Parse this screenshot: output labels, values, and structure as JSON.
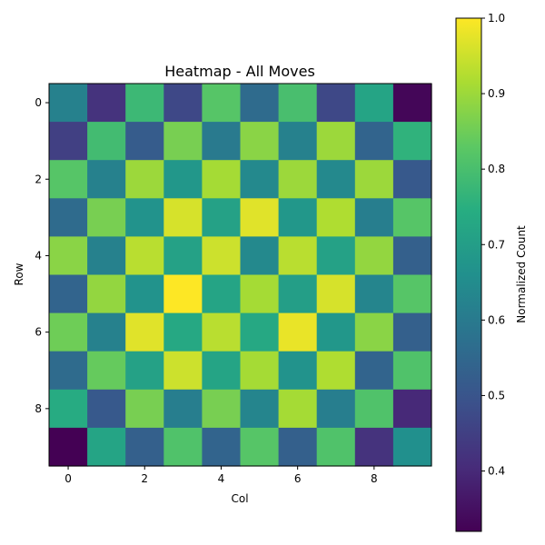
{
  "chart_data": {
    "type": "heatmap",
    "title": "Heatmap - All Moves",
    "xlabel": "Col",
    "ylabel": "Row",
    "xticks": [
      "0",
      "2",
      "4",
      "6",
      "8"
    ],
    "yticks": [
      "0",
      "2",
      "4",
      "6",
      "8"
    ],
    "rows": [
      0,
      1,
      2,
      3,
      4,
      5,
      6,
      7,
      8,
      9
    ],
    "cols": [
      0,
      1,
      2,
      3,
      4,
      5,
      6,
      7,
      8,
      9
    ],
    "values": [
      [
        0.62,
        0.42,
        0.78,
        0.47,
        0.82,
        0.56,
        0.8,
        0.47,
        0.72,
        0.33
      ],
      [
        0.45,
        0.79,
        0.52,
        0.86,
        0.6,
        0.88,
        0.62,
        0.9,
        0.54,
        0.76
      ],
      [
        0.82,
        0.62,
        0.9,
        0.68,
        0.91,
        0.64,
        0.9,
        0.64,
        0.9,
        0.51
      ],
      [
        0.56,
        0.86,
        0.67,
        0.96,
        0.71,
        0.97,
        0.68,
        0.92,
        0.61,
        0.82
      ],
      [
        0.88,
        0.62,
        0.93,
        0.71,
        0.95,
        0.64,
        0.93,
        0.71,
        0.89,
        0.53
      ],
      [
        0.54,
        0.89,
        0.67,
        1.0,
        0.72,
        0.91,
        0.7,
        0.96,
        0.63,
        0.82
      ],
      [
        0.85,
        0.62,
        0.97,
        0.73,
        0.93,
        0.73,
        0.98,
        0.68,
        0.88,
        0.53
      ],
      [
        0.56,
        0.84,
        0.71,
        0.95,
        0.72,
        0.91,
        0.67,
        0.92,
        0.54,
        0.81
      ],
      [
        0.74,
        0.51,
        0.86,
        0.61,
        0.86,
        0.63,
        0.91,
        0.61,
        0.81,
        0.4
      ],
      [
        0.32,
        0.72,
        0.53,
        0.81,
        0.54,
        0.82,
        0.53,
        0.81,
        0.42,
        0.66
      ]
    ],
    "colorbar": {
      "label": "Normalized Count",
      "range": [
        0.32,
        1.0
      ],
      "ticks": [
        "0.4",
        "0.5",
        "0.6",
        "0.7",
        "0.8",
        "0.9",
        "1.0"
      ],
      "colormap": "viridis"
    },
    "grid": false
  }
}
